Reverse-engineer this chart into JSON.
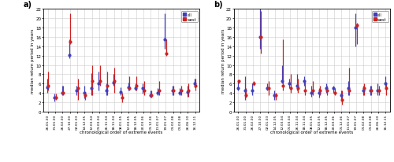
{
  "panel_a": {
    "labels": [
      "26.01.00",
      "31.01.00",
      "26.02.00",
      "27.10.00",
      "02.01.03",
      "14.12.05",
      "12.03.04",
      "01.03.04",
      "26.11.04",
      "18.11.04",
      "08.01.05",
      "12.03.05",
      "18.12.05",
      "20.03.06",
      "01.12.06",
      "11.01.07",
      "19.01.07",
      "01.02.08",
      "01.03.08",
      "26.06.10",
      "16.12.11"
    ],
    "blue_low": [
      4.0,
      2.2,
      3.5,
      11.5,
      3.5,
      2.8,
      3.5,
      4.5,
      3.5,
      5.5,
      3.5,
      4.5,
      4.5,
      3.8,
      3.0,
      3.5,
      13.5,
      3.5,
      3.5,
      3.2,
      5.2
    ],
    "blue_mid": [
      5.2,
      3.0,
      4.0,
      12.2,
      4.5,
      4.0,
      5.0,
      6.0,
      4.5,
      6.2,
      4.2,
      5.2,
      5.0,
      5.0,
      3.5,
      4.0,
      15.5,
      4.5,
      4.0,
      4.2,
      6.0
    ],
    "blue_high": [
      7.0,
      3.8,
      5.5,
      15.5,
      5.5,
      5.5,
      8.2,
      8.5,
      6.0,
      8.0,
      5.2,
      6.2,
      6.0,
      6.0,
      4.5,
      5.0,
      21.0,
      5.5,
      5.0,
      5.5,
      7.0
    ],
    "red_low": [
      4.5,
      2.5,
      3.5,
      14.5,
      2.5,
      2.5,
      3.5,
      5.5,
      3.5,
      4.0,
      2.0,
      4.5,
      4.5,
      3.5,
      3.0,
      3.5,
      12.0,
      3.5,
      3.5,
      3.2,
      4.5
    ],
    "red_mid": [
      5.5,
      3.0,
      4.0,
      15.0,
      5.0,
      3.5,
      6.5,
      6.5,
      5.5,
      6.5,
      3.0,
      5.0,
      5.5,
      4.5,
      3.5,
      4.5,
      12.5,
      4.5,
      4.5,
      4.5,
      5.5
    ],
    "red_high": [
      8.5,
      3.8,
      5.5,
      21.0,
      7.0,
      4.0,
      10.0,
      10.0,
      8.5,
      9.5,
      4.0,
      7.5,
      7.5,
      6.5,
      4.5,
      6.5,
      15.5,
      5.5,
      5.5,
      6.0,
      7.0
    ]
  },
  "panel_b": {
    "labels": [
      "26.01.00",
      "31.01.00",
      "26.02.00",
      "27.10.00",
      "02.01.03",
      "14.12.05",
      "12.03.04",
      "01.03.04",
      "26.11.04",
      "18.11.04",
      "08.01.05",
      "12.03.05",
      "18.12.05",
      "20.03.06",
      "01.12.06",
      "11.01.07",
      "19.01.07",
      "01.02.08",
      "01.03.08",
      "26.06.10",
      "16.12.11"
    ],
    "blue_low": [
      4.5,
      2.5,
      3.5,
      13.5,
      4.5,
      2.5,
      6.0,
      5.0,
      4.5,
      5.5,
      3.2,
      3.0,
      4.0,
      4.0,
      2.5,
      3.5,
      14.0,
      3.5,
      3.5,
      3.5,
      5.0
    ],
    "blue_mid": [
      5.0,
      4.5,
      4.5,
      16.0,
      5.0,
      3.5,
      6.5,
      6.0,
      5.5,
      6.5,
      4.0,
      4.0,
      5.0,
      5.0,
      3.5,
      5.0,
      18.0,
      4.5,
      4.5,
      4.5,
      6.0
    ],
    "blue_high": [
      6.5,
      7.5,
      6.0,
      22.0,
      6.0,
      4.5,
      10.0,
      7.0,
      8.0,
      7.5,
      5.5,
      5.0,
      6.0,
      5.5,
      4.5,
      6.5,
      21.0,
      5.5,
      5.5,
      6.0,
      7.5
    ],
    "red_low": [
      6.0,
      3.0,
      5.5,
      12.5,
      3.5,
      2.5,
      4.5,
      4.0,
      4.0,
      3.5,
      3.5,
      3.5,
      3.5,
      3.5,
      1.5,
      3.5,
      14.5,
      3.5,
      3.5,
      3.5,
      3.5
    ],
    "red_mid": [
      6.5,
      3.5,
      6.0,
      16.0,
      5.0,
      3.5,
      5.5,
      5.0,
      5.0,
      4.5,
      4.5,
      4.5,
      4.5,
      4.0,
      2.5,
      4.5,
      18.5,
      5.0,
      4.5,
      4.5,
      5.0
    ],
    "red_high": [
      6.5,
      5.0,
      6.5,
      21.5,
      6.5,
      4.0,
      15.5,
      8.0,
      7.0,
      6.5,
      6.5,
      5.5,
      5.5,
      5.0,
      4.5,
      9.5,
      19.0,
      6.0,
      5.5,
      5.5,
      6.0
    ]
  },
  "blue_color": "#4040bb",
  "red_color": "#cc2222",
  "ylabel": "median return period in years",
  "xlabel": "chronological order of extreme events",
  "ylim": [
    0,
    22
  ],
  "yticks": [
    0,
    2,
    4,
    6,
    8,
    10,
    12,
    14,
    16,
    18,
    20,
    22
  ],
  "panel_labels": [
    "a)",
    "b)"
  ],
  "legend_labels": [
    "all",
    "west"
  ],
  "grid_color": "#cccccc",
  "bg_color": "#ffffff",
  "plot_bg_color": "#ffffff"
}
